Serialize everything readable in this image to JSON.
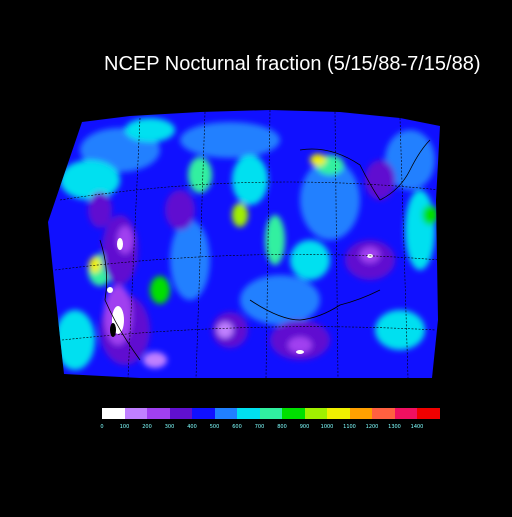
{
  "title": "NCEP Nocturnal fraction (5/15/88-7/15/88)",
  "colorbar": {
    "colors": [
      "#ffffff",
      "#c080ff",
      "#a040f0",
      "#6010d0",
      "#1010ff",
      "#2080ff",
      "#00e0f0",
      "#30f0a0",
      "#00e000",
      "#a0f000",
      "#f0f000",
      "#ffa000",
      "#ff6040",
      "#f01060",
      "#f00000"
    ],
    "tick_labels": [
      "0",
      "100",
      "200",
      "300",
      "400",
      "500",
      "600",
      "700",
      "800",
      "900",
      "1000",
      "1100",
      "1200",
      "1300",
      "1400"
    ]
  }
}
